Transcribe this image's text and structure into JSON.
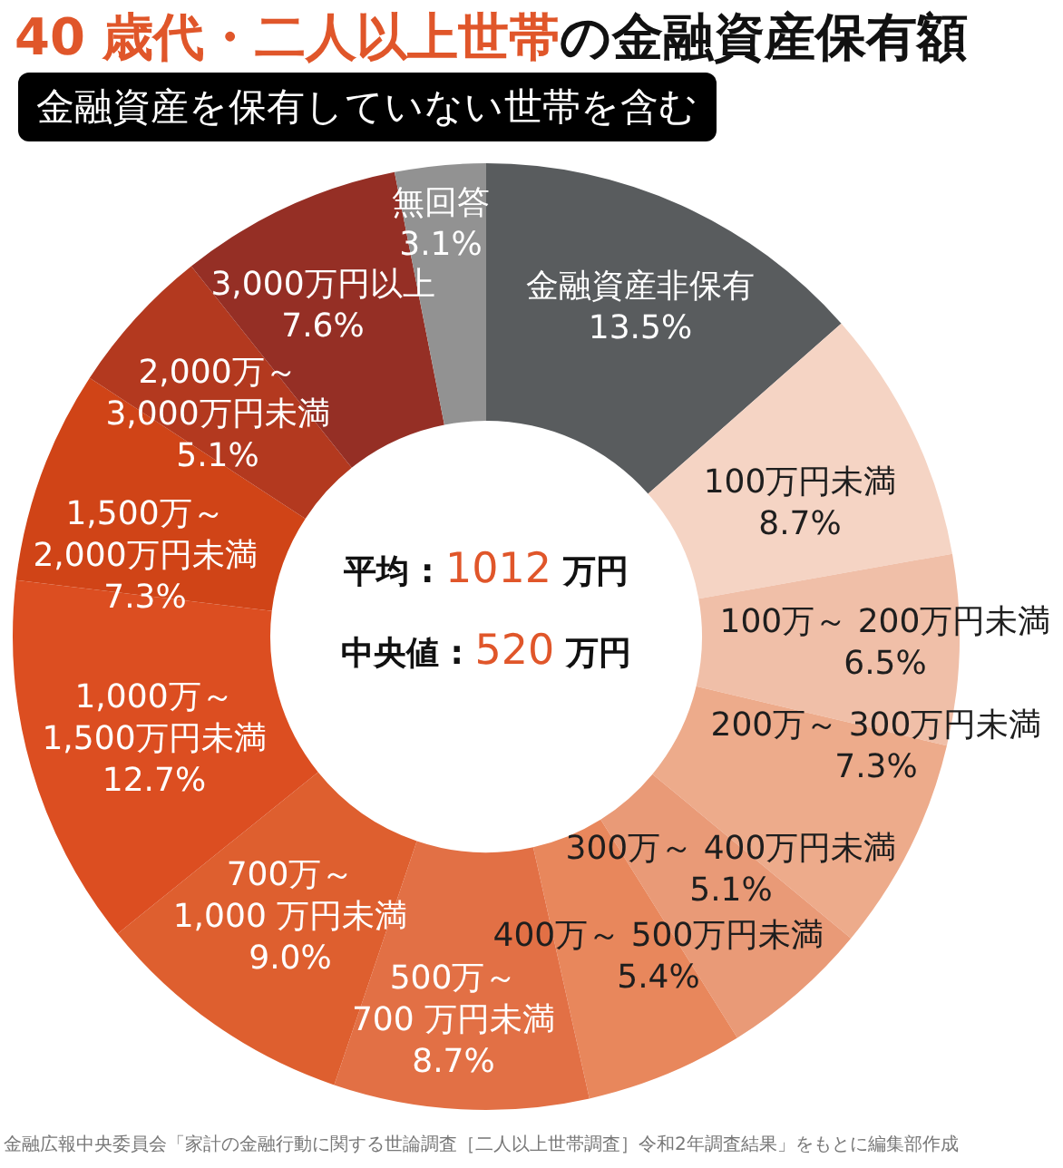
{
  "chart_data": {
    "type": "donut",
    "title": "40 歳代・二人以上世帯の金融資産保有額",
    "subtitle": "金融資産を保有していない世帯を含む",
    "categories": [
      "金融資産非保有",
      "100万円未満",
      "100万～ 200万円未満",
      "200万～ 300万円未満",
      "300万～ 400万円未満",
      "400万～ 500万円未満",
      "500万～\n700 万円未満",
      "700万～\n1,000 万円未満",
      "1,000万～\n1,500万円未満",
      "1,500万～\n2,000万円未満",
      "2,000万～\n3,000万円未満",
      "3,000万円以上",
      "無回答"
    ],
    "values": [
      13.5,
      8.7,
      6.5,
      7.3,
      5.1,
      5.4,
      8.7,
      9.0,
      12.7,
      7.3,
      5.1,
      7.6,
      3.1
    ],
    "value_labels": [
      "13.5%",
      "8.7%",
      "6.5%",
      "7.3%",
      "5.1%",
      "5.4%",
      "8.7%",
      "9.0%",
      "12.7%",
      "7.3%",
      "5.1%",
      "7.6%",
      "3.1%"
    ],
    "colors": [
      "#595c5e",
      "#f5d4c4",
      "#f0bfa8",
      "#edab8b",
      "#e99a77",
      "#e8875c",
      "#e27045",
      "#de5f2f",
      "#dc4e21",
      "#d04417",
      "#b3391f",
      "#952f25",
      "#929292"
    ],
    "annotations": [
      "平均 : 1012 万円",
      "中央値 : 520 万円",
      "金融広報中央委員会「家計の金融行動に関する世論調査［二人以上世帯調査］令和2年調査結果」をもとに編集部作成"
    ]
  }
}
